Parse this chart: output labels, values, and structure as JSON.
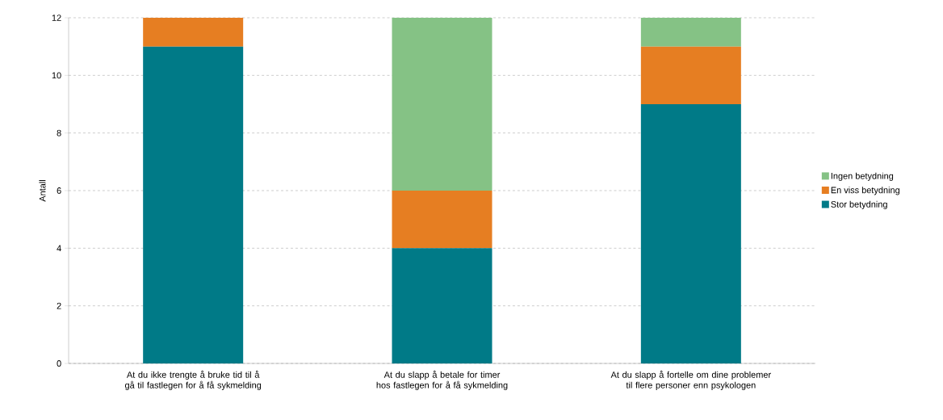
{
  "chart_data": {
    "type": "bar",
    "stacked": true,
    "ylabel": "Antall",
    "categories": [
      "At du ikke trengte å bruke tid til å gå til fastlegen for å få sykmelding",
      "At du slapp å betale for timer hos fastlegen for å få sykmelding",
      "At du slapp å fortelle om dine problemer til flere personer enn psykologen"
    ],
    "series": [
      {
        "name": "Stor betydning",
        "color": "#007a87",
        "values": [
          11,
          4,
          9
        ]
      },
      {
        "name": "En viss betydning",
        "color": "#e67e22",
        "values": [
          1,
          2,
          2
        ]
      },
      {
        "name": "Ingen betydning",
        "color": "#85c285",
        "values": [
          0,
          6,
          1
        ]
      }
    ],
    "ylim": [
      0,
      12
    ],
    "yticks": [
      0,
      2,
      4,
      6,
      8,
      10,
      12
    ],
    "grid": "y",
    "legend": "right"
  }
}
